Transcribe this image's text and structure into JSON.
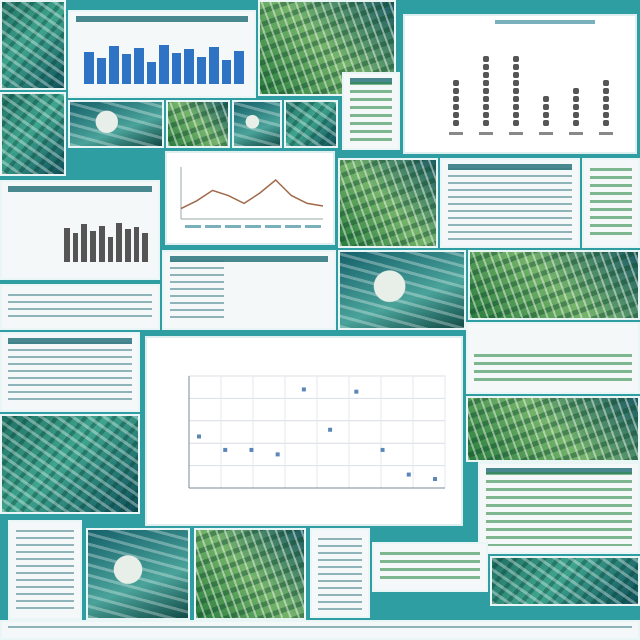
{
  "colors": {
    "background": "#2f9ea3",
    "tile_border": "#e9f6f5",
    "chart_point": "#5b86b8",
    "bar_blue": "#2f74c4",
    "line_brown": "#a06a4a"
  },
  "chart_data": [
    {
      "type": "scatter",
      "title": "",
      "xlabel": "",
      "ylabel": "",
      "grid": true,
      "x": [
        1,
        2,
        3,
        4,
        5,
        6,
        7,
        8,
        9,
        10
      ],
      "y": [
        93,
        87,
        87,
        85,
        114,
        96,
        113,
        87,
        76,
        74
      ],
      "ylim": [
        70,
        120
      ]
    },
    {
      "type": "line",
      "x": [
        1,
        2,
        3,
        4,
        5,
        6,
        7,
        8,
        9,
        10
      ],
      "y": [
        20,
        35,
        55,
        45,
        30,
        50,
        75,
        45,
        30,
        25
      ]
    },
    {
      "type": "bar",
      "values": [
        60,
        48,
        70,
        55,
        66,
        40,
        72,
        58,
        64,
        50,
        69,
        44,
        62
      ]
    }
  ]
}
